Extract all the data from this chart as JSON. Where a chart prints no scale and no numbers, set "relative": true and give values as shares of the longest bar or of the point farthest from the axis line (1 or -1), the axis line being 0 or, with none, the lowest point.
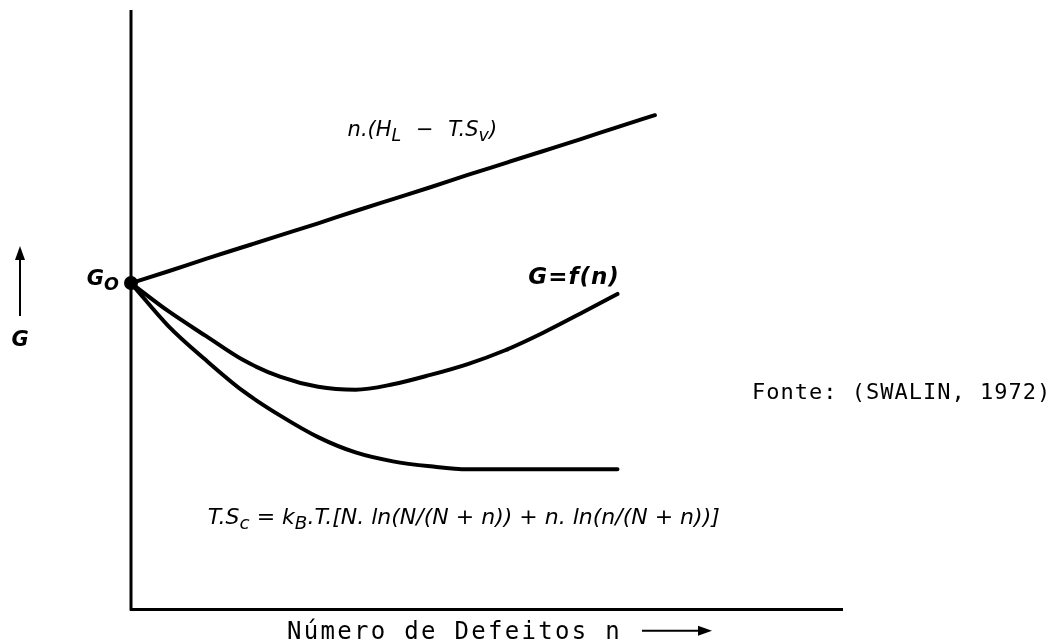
{
  "chart_data": {
    "type": "line",
    "relative": true,
    "xlabel": "Número de Defeitos n",
    "ylabel": "G",
    "line_style": "solid",
    "categories": [
      null,
      null,
      null,
      null,
      null,
      null,
      null,
      null,
      null,
      null,
      null,
      null,
      null,
      null,
      null,
      null,
      null,
      null,
      null,
      null
    ],
    "series": [
      {
        "name": "n.(H$_{L}$ − T.S$_{v}$)",
        "color": "#000000",
        "values": [
          0.66,
          0.684,
          0.709,
          0.733,
          0.757,
          0.781,
          0.806,
          0.83,
          0.854,
          0.879,
          0.903,
          0.927,
          0.951,
          0.976,
          1,
          null,
          null,
          null,
          null,
          null
        ]
      },
      {
        "name": "G=f(n)",
        "color": "#000000",
        "values": [
          0.66,
          0.603,
          0.553,
          0.504,
          0.47,
          0.45,
          0.444,
          0.455,
          0.474,
          0.496,
          0.524,
          0.559,
          0.598,
          0.638,
          null,
          null,
          null,
          null,
          null,
          null
        ]
      },
      {
        "name": "T.S$_{c}$ = k$_{B}$.T.[N. ln(N/(N + n)) + n. ln(n/(N + n))]",
        "color": "#000000",
        "values": [
          0.66,
          0.573,
          0.504,
          0.441,
          0.391,
          0.348,
          0.317,
          0.299,
          0.289,
          0.283,
          0.283,
          0.283,
          0.283,
          0.283,
          null,
          null,
          null,
          null,
          null,
          null
        ]
      }
    ],
    "annotations": [
      "G$_{O}$",
      "Fonte: (SWALIN, 1972)"
    ]
  }
}
